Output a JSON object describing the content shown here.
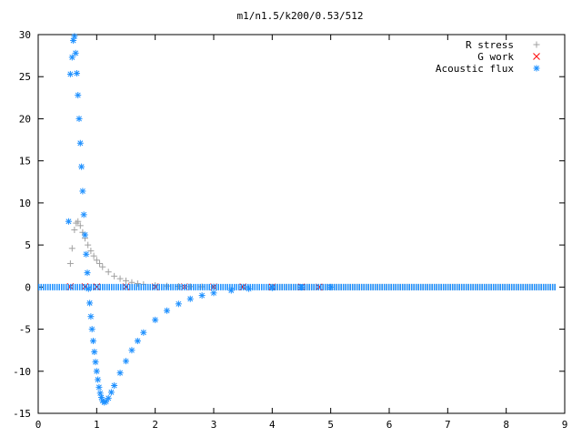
{
  "chart_data": {
    "type": "scatter",
    "title": "m1/n1.5/k200/0.53/512",
    "xlabel": "",
    "ylabel": "",
    "xlim": [
      0,
      9
    ],
    "ylim": [
      -15,
      30
    ],
    "xticks": [
      0,
      1,
      2,
      3,
      4,
      5,
      6,
      7,
      8,
      9
    ],
    "yticks": [
      -15,
      -10,
      -5,
      0,
      5,
      10,
      15,
      20,
      25,
      30
    ],
    "grid": false,
    "legend_position": "top-right",
    "series": [
      {
        "name": "R stress",
        "marker": "+",
        "color": "#a0a0a0",
        "x": [
          0.55,
          0.58,
          0.62,
          0.65,
          0.68,
          0.72,
          0.76,
          0.8,
          0.85,
          0.9,
          0.95,
          1.0,
          1.05,
          1.1,
          1.2,
          1.3,
          1.4,
          1.5,
          1.6,
          1.7,
          1.8,
          2.0,
          2.2,
          2.4,
          2.6,
          2.8,
          3.0,
          3.5,
          4.0
        ],
        "y": [
          2.8,
          4.6,
          6.8,
          7.6,
          7.8,
          7.3,
          6.5,
          5.8,
          5.0,
          4.3,
          3.7,
          3.2,
          2.8,
          2.4,
          1.8,
          1.3,
          1.0,
          0.75,
          0.55,
          0.42,
          0.32,
          0.2,
          0.13,
          0.09,
          0.06,
          0.04,
          0.03,
          0.01,
          0.0
        ]
      },
      {
        "name": "G work",
        "marker": "x",
        "color": "#ff0000",
        "x": [
          0.55,
          0.8,
          1.0,
          1.5,
          2.0,
          2.5,
          3.0,
          3.5,
          4.0,
          4.5,
          4.8
        ],
        "y": [
          0.05,
          0.05,
          0.04,
          0.04,
          0.03,
          0.03,
          0.02,
          0.02,
          0.01,
          0.01,
          0.0
        ]
      },
      {
        "name": "Acoustic flux",
        "marker": "*",
        "color": "#1e90ff",
        "x": [
          0.52,
          0.55,
          0.58,
          0.6,
          0.62,
          0.64,
          0.66,
          0.68,
          0.7,
          0.72,
          0.74,
          0.76,
          0.78,
          0.8,
          0.82,
          0.84,
          0.86,
          0.88,
          0.9,
          0.92,
          0.94,
          0.96,
          0.98,
          1.0,
          1.02,
          1.04,
          1.06,
          1.08,
          1.1,
          1.13,
          1.16,
          1.2,
          1.25,
          1.3,
          1.4,
          1.5,
          1.6,
          1.7,
          1.8,
          2.0,
          2.2,
          2.4,
          2.6,
          2.8,
          3.0,
          3.3,
          3.6,
          4.0,
          4.5,
          5.0
        ],
        "y": [
          7.8,
          25.3,
          27.3,
          29.3,
          29.8,
          27.8,
          25.4,
          22.8,
          20.0,
          17.1,
          14.3,
          11.4,
          8.6,
          6.2,
          3.9,
          1.7,
          -0.2,
          -1.9,
          -3.5,
          -5.0,
          -6.4,
          -7.7,
          -8.9,
          -10.0,
          -11.0,
          -11.9,
          -12.6,
          -13.1,
          -13.5,
          -13.7,
          -13.6,
          -13.2,
          -12.5,
          -11.7,
          -10.2,
          -8.8,
          -7.5,
          -6.4,
          -5.4,
          -3.9,
          -2.8,
          -2.0,
          -1.4,
          -1.0,
          -0.7,
          -0.4,
          -0.2,
          -0.1,
          -0.03,
          0.0
        ]
      }
    ]
  }
}
